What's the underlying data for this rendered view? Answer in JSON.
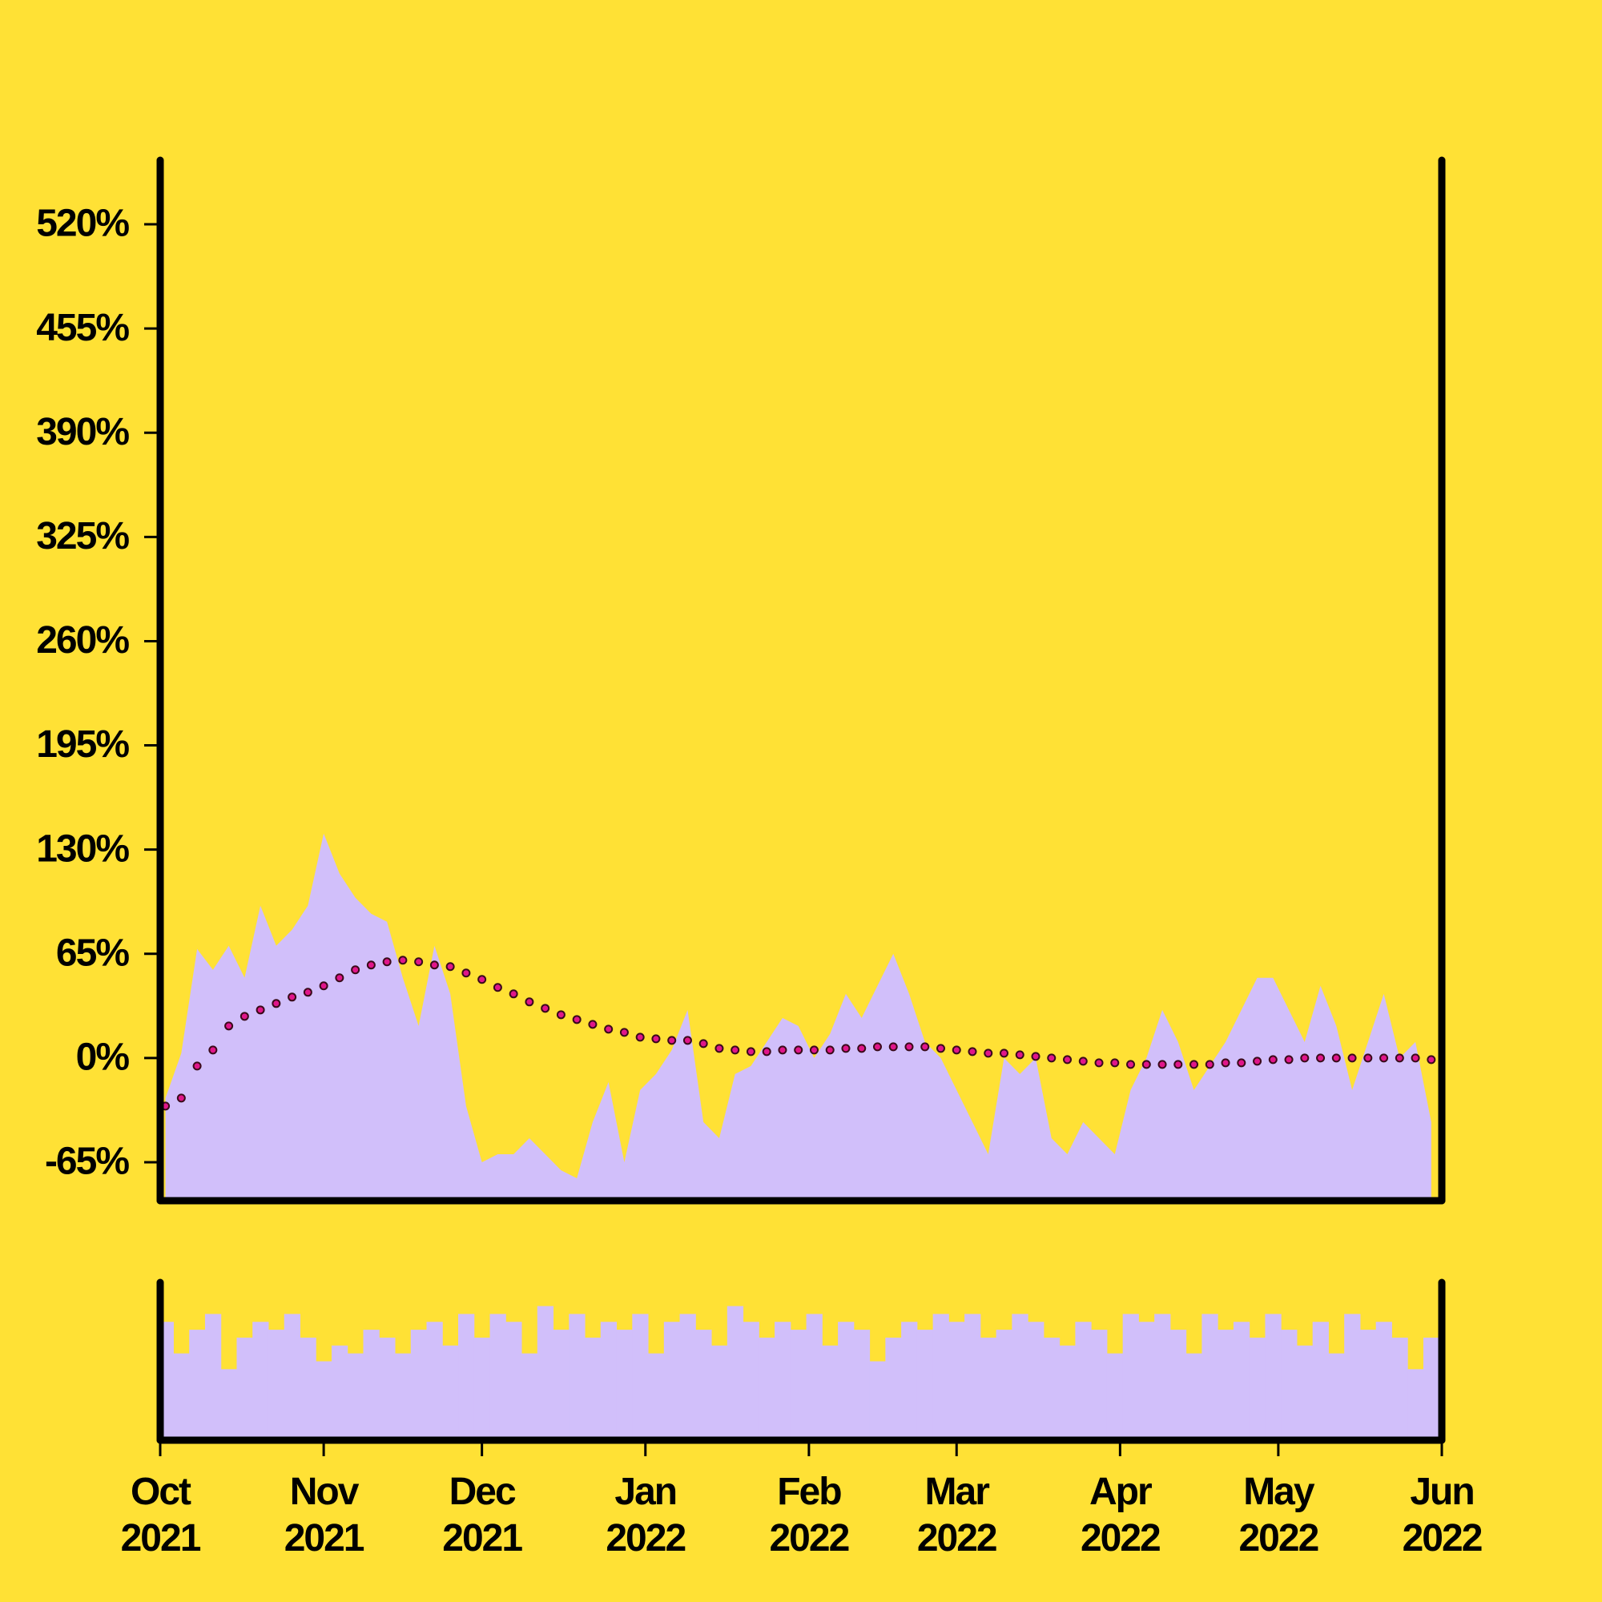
{
  "chart_data": [
    {
      "type": "area",
      "xlim": [
        0,
        243
      ],
      "ylim": [
        -89,
        560
      ],
      "yticks": [
        {
          "value": -65,
          "label": "-65%"
        },
        {
          "value": 0,
          "label": "0%"
        },
        {
          "value": 65,
          "label": "65%"
        },
        {
          "value": 130,
          "label": "130%"
        },
        {
          "value": 195,
          "label": "195%"
        },
        {
          "value": 260,
          "label": "260%"
        },
        {
          "value": 325,
          "label": "325%"
        },
        {
          "value": 390,
          "label": "390%"
        },
        {
          "value": 455,
          "label": "455%"
        },
        {
          "value": 520,
          "label": "520%"
        }
      ],
      "x": [
        1,
        4,
        7,
        10,
        13,
        16,
        19,
        22,
        25,
        28,
        31,
        34,
        37,
        40,
        43,
        46,
        49,
        52,
        55,
        58,
        61,
        64,
        67,
        70,
        73,
        76,
        79,
        82,
        85,
        88,
        91,
        94,
        97,
        100,
        103,
        106,
        109,
        112,
        115,
        118,
        121,
        124,
        127,
        130,
        133,
        136,
        139,
        142,
        145,
        148,
        151,
        154,
        157,
        160,
        163,
        166,
        169,
        172,
        175,
        178,
        181,
        184,
        187,
        190,
        193,
        196,
        199,
        202,
        205,
        208,
        211,
        214,
        217,
        220,
        223,
        226,
        229,
        232,
        235,
        238,
        241
      ],
      "series": [
        {
          "type": "area",
          "color": "#D1BFFA",
          "values": [
            -25,
            3,
            68,
            55,
            70,
            50,
            95,
            70,
            80,
            95,
            140,
            115,
            100,
            90,
            85,
            50,
            20,
            70,
            40,
            -30,
            -65,
            -60,
            -60,
            -50,
            -60,
            -70,
            -75,
            -40,
            -15,
            -65,
            -20,
            -10,
            5,
            30,
            -40,
            -50,
            -10,
            -5,
            10,
            25,
            20,
            0,
            15,
            40,
            25,
            45,
            65,
            40,
            10,
            0,
            -20,
            -40,
            -60,
            0,
            -10,
            0,
            -50,
            -60,
            -40,
            -50,
            -60,
            -20,
            0,
            30,
            10,
            -20,
            -5,
            10,
            30,
            50,
            50,
            30,
            10,
            45,
            20,
            -20,
            10,
            40,
            0,
            10,
            -40
          ]
        },
        {
          "type": "scatter",
          "color": "#E0168A",
          "edgecolor": "#3A0A1A",
          "values": [
            -30,
            -25,
            -5,
            5,
            20,
            26,
            30,
            34,
            38,
            41,
            45,
            50,
            55,
            58,
            60,
            61,
            60,
            58,
            57,
            53,
            49,
            44,
            40,
            35,
            31,
            27,
            24,
            21,
            18,
            16,
            13,
            12,
            11,
            11,
            9,
            6,
            5,
            4,
            4,
            5,
            5,
            5,
            5,
            6,
            6,
            7,
            7,
            7,
            7,
            6,
            5,
            4,
            3,
            3,
            2,
            1,
            0,
            -1,
            -2,
            -3,
            -3,
            -4,
            -4,
            -4,
            -4,
            -4,
            -4,
            -3,
            -3,
            -2,
            -1,
            -1,
            0,
            0,
            0,
            0,
            0,
            0,
            0,
            0,
            -1
          ]
        }
      ]
    },
    {
      "type": "bar",
      "xlim": [
        0,
        243
      ],
      "ylim": [
        0,
        100
      ],
      "xticks": [
        {
          "value": 0,
          "label": "Oct 2021"
        },
        {
          "value": 31,
          "label": "Nov 2021"
        },
        {
          "value": 61,
          "label": "Dec 2021"
        },
        {
          "value": 92,
          "label": "Jan 2022"
        },
        {
          "value": 123,
          "label": "Feb 2022"
        },
        {
          "value": 151,
          "label": "Mar 2022"
        },
        {
          "value": 182,
          "label": "Apr 2022"
        },
        {
          "value": 212,
          "label": "May 2022"
        },
        {
          "value": 243,
          "label": "Jun 2022"
        }
      ],
      "x": [
        1,
        4,
        7,
        10,
        13,
        16,
        19,
        22,
        25,
        28,
        31,
        34,
        37,
        40,
        43,
        46,
        49,
        52,
        55,
        58,
        61,
        64,
        67,
        70,
        73,
        76,
        79,
        82,
        85,
        88,
        91,
        94,
        97,
        100,
        103,
        106,
        109,
        112,
        115,
        118,
        121,
        124,
        127,
        130,
        133,
        136,
        139,
        142,
        145,
        148,
        151,
        154,
        157,
        160,
        163,
        166,
        169,
        172,
        175,
        178,
        181,
        184,
        187,
        190,
        193,
        196,
        199,
        202,
        205,
        208,
        211,
        214,
        217,
        220,
        223,
        226,
        229,
        232,
        235,
        238,
        241
      ],
      "color": "#D1BFFA",
      "values": [
        75,
        55,
        70,
        80,
        45,
        65,
        75,
        70,
        80,
        65,
        50,
        60,
        55,
        70,
        65,
        55,
        70,
        75,
        60,
        80,
        65,
        80,
        75,
        55,
        85,
        70,
        80,
        65,
        75,
        70,
        80,
        55,
        75,
        80,
        70,
        60,
        85,
        75,
        65,
        75,
        70,
        80,
        60,
        75,
        70,
        50,
        65,
        75,
        70,
        80,
        75,
        80,
        65,
        70,
        80,
        75,
        65,
        60,
        75,
        70,
        55,
        80,
        75,
        80,
        70,
        55,
        80,
        70,
        75,
        65,
        80,
        70,
        60,
        75,
        55,
        80,
        70,
        75,
        65,
        45,
        65
      ]
    }
  ]
}
